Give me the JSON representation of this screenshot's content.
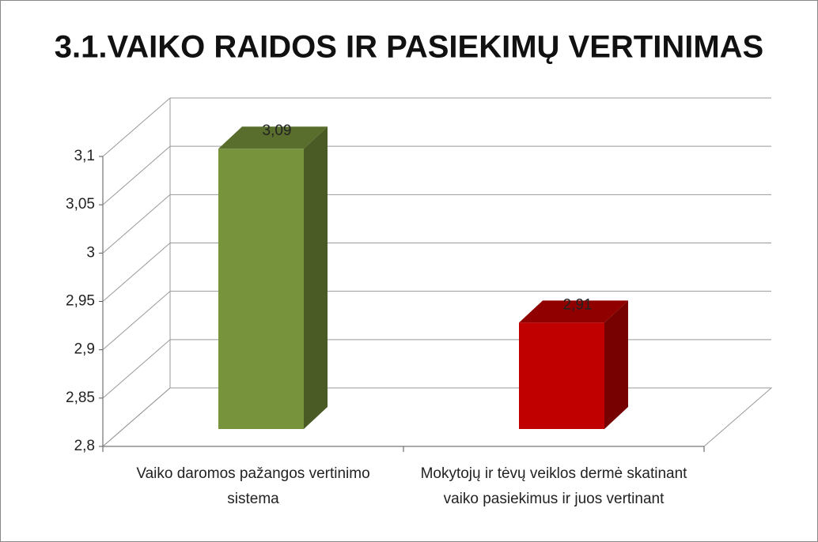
{
  "chart_data": {
    "type": "bar3d",
    "title": "3.1.VAIKO RAIDOS IR PASIEKIMŲ VERTINIMAS",
    "categories": [
      "Vaiko daromos pažangos vertinimo sistema",
      "Mokytojų ir tėvų veiklos dermė skatinant vaiko pasiekimus ir juos vertinant"
    ],
    "values": [
      3.09,
      2.91
    ],
    "value_labels": [
      "3,09",
      "2,91"
    ],
    "colors": [
      "#77933c",
      "#c00000"
    ],
    "ylim": [
      2.8,
      3.1
    ],
    "yticks": [
      {
        "value": 2.8,
        "label": "2,8"
      },
      {
        "value": 2.85,
        "label": "2,85"
      },
      {
        "value": 2.9,
        "label": "2,9"
      },
      {
        "value": 2.95,
        "label": "2,95"
      },
      3,
      {
        "value": 3.05,
        "label": "3,05"
      },
      {
        "value": 3.1,
        "label": "3,1"
      }
    ],
    "grid": true
  }
}
